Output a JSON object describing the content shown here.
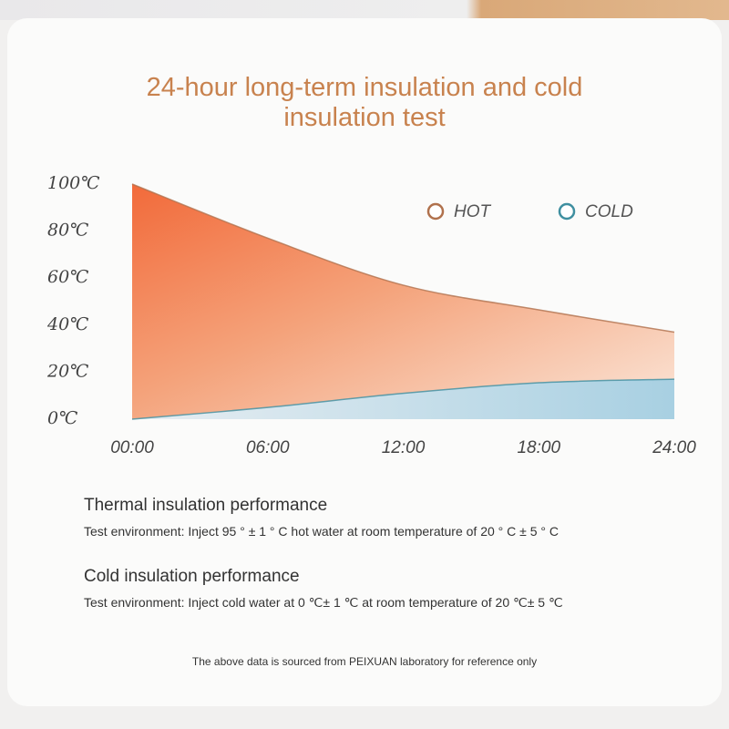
{
  "chart_data": {
    "type": "area",
    "title": "24-hour long-term insulation and cold insulation test",
    "categories": [
      "00:00",
      "06:00",
      "12:00",
      "18:00",
      "24:00"
    ],
    "series": [
      {
        "name": "HOT",
        "color": "#b0714c",
        "values": [
          100,
          77,
          57,
          46.5,
          37
        ]
      },
      {
        "name": "COLD",
        "color": "#3f8fa0",
        "values": [
          0,
          5,
          11,
          15.5,
          17
        ]
      }
    ],
    "ylim": [
      0,
      100
    ],
    "yticks": [
      {
        "value": 0,
        "label": "0℃"
      },
      {
        "value": 20,
        "label": "20℃"
      },
      {
        "value": 40,
        "label": "40℃"
      },
      {
        "value": 60,
        "label": "60℃"
      },
      {
        "value": 80,
        "label": "80℃"
      },
      {
        "value": 100,
        "label": "100℃"
      }
    ],
    "legend": "top-right",
    "grid": false
  },
  "sections": [
    {
      "heading": "Thermal insulation performance",
      "detail": "Test environment: Inject 95 ° ± 1 ° C hot water at room temperature of 20 ° C ± 5 ° C"
    },
    {
      "heading": "Cold insulation performance",
      "detail": "Test environment: Inject cold water at 0 ℃± 1 ℃ at room temperature of 20 ℃± 5 ℃"
    }
  ],
  "footnote": "The above data is sourced from PEIXUAN laboratory for reference only"
}
